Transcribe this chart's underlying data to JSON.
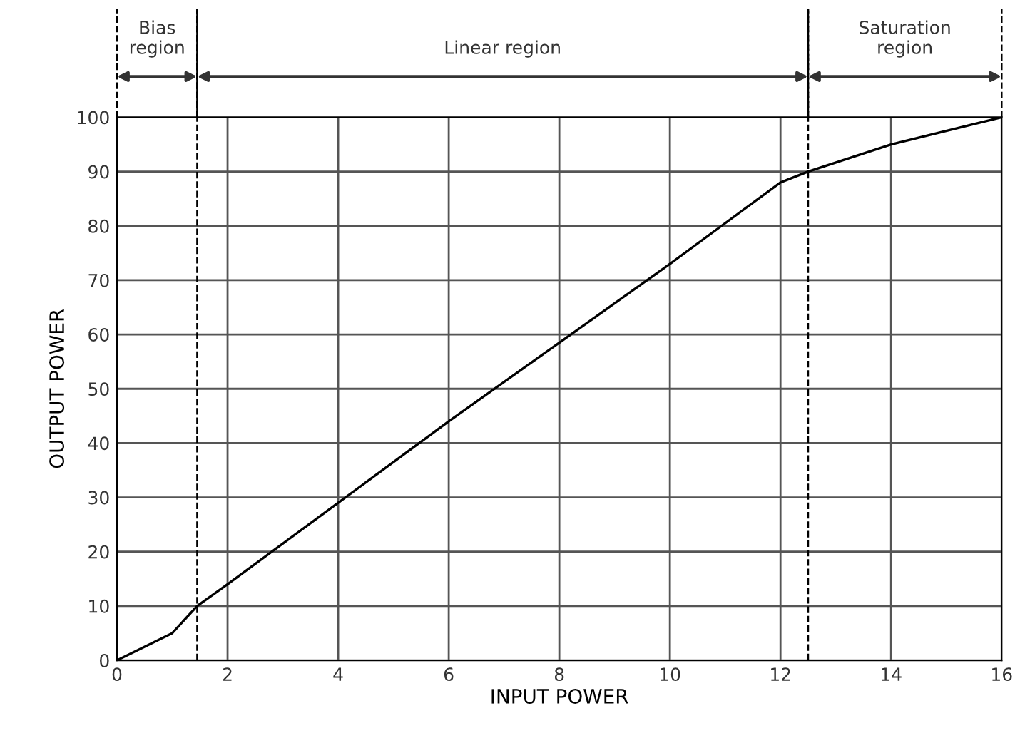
{
  "chart_data": {
    "type": "line",
    "xlabel": "INPUT POWER",
    "ylabel": "OUTPUT POWER",
    "x": [
      0,
      1,
      1.45,
      2,
      4,
      6,
      8,
      10,
      12,
      12.5,
      14,
      16
    ],
    "series": [
      {
        "color": "#000000",
        "values": [
          0,
          5,
          10,
          14,
          29,
          44,
          58.5,
          73,
          88,
          90,
          95,
          100
        ]
      }
    ],
    "xlim": [
      0,
      16
    ],
    "ylim": [
      0,
      100
    ],
    "xticks": [
      0,
      2,
      4,
      6,
      8,
      10,
      12,
      14,
      16
    ],
    "yticks": [
      0,
      10,
      20,
      30,
      40,
      50,
      60,
      70,
      80,
      90,
      100
    ],
    "grid": true,
    "marker": "none",
    "line_style": "solid",
    "ref_lines": [
      {
        "axis": "x",
        "value": 1.45,
        "line_style": "dashed",
        "color": "#000000"
      },
      {
        "axis": "x",
        "value": 12.5,
        "line_style": "dashed",
        "color": "#000000"
      }
    ],
    "annotations": [
      "Bias\nregion",
      "Linear region",
      "Saturation\nregion"
    ]
  }
}
